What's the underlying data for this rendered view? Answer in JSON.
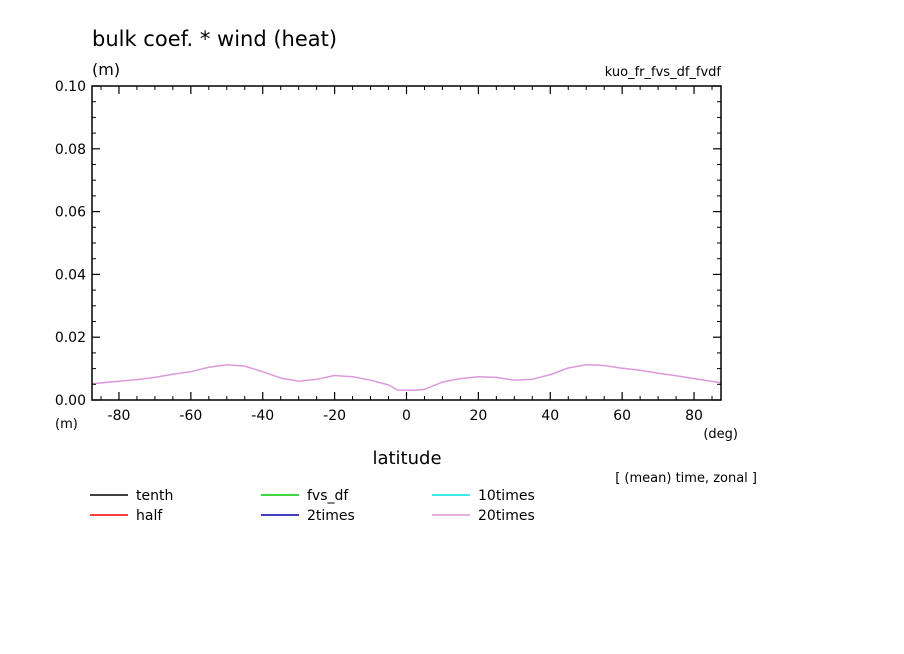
{
  "chart_data": {
    "type": "line",
    "title": "bulk coef. * wind (heat)",
    "experiment": "kuo_fr_fvs_df_fvdf",
    "ylabel": "(m)",
    "ylabel_unit_bottom": "(m)",
    "xlabel": "latitude",
    "xunit": "(deg)",
    "note": "[ (mean) time, zonal ]",
    "xlim": [
      -87.5,
      87.5
    ],
    "ylim": [
      0,
      0.1
    ],
    "xticks": [
      -80,
      -60,
      -40,
      -20,
      0,
      20,
      40,
      60,
      80
    ],
    "xtick_labels": [
      "-80",
      "-60",
      "-40",
      "-20",
      "0",
      "20",
      "40",
      "60",
      "80"
    ],
    "yticks": [
      0,
      0.02,
      0.04,
      0.06,
      0.08,
      0.1
    ],
    "ytick_labels": [
      "0.00",
      "0.02",
      "0.04",
      "0.06",
      "0.08",
      "0.10"
    ],
    "grid": false,
    "legend_placement": "bottom-left",
    "x": [
      -87.5,
      -80,
      -75,
      -70,
      -65,
      -60,
      -55,
      -50,
      -45,
      -40,
      -35,
      -30,
      -25,
      -20,
      -15,
      -10,
      -5,
      -2.5,
      0,
      2.5,
      5,
      10,
      15,
      20,
      25,
      30,
      35,
      40,
      45,
      50,
      55,
      60,
      65,
      70,
      75,
      80,
      87.5
    ],
    "series": [
      {
        "name": "tenth",
        "color": "#000000",
        "values": null
      },
      {
        "name": "half",
        "color": "#ff0000",
        "values": null
      },
      {
        "name": "fvs_df",
        "color": "#00cc00",
        "values": null
      },
      {
        "name": "2times",
        "color": "#0000aa",
        "values": null
      },
      {
        "name": "10times",
        "color": "#00e0e0",
        "values": null
      },
      {
        "name": "20times",
        "color": "#dd99dd",
        "values": [
          0.0052,
          0.006,
          0.0065,
          0.0072,
          0.0082,
          0.009,
          0.0104,
          0.0112,
          0.0108,
          0.009,
          0.007,
          0.006,
          0.0066,
          0.0078,
          0.0074,
          0.0063,
          0.0048,
          0.0032,
          0.0031,
          0.0031,
          0.0034,
          0.0057,
          0.0068,
          0.0074,
          0.0072,
          0.0063,
          0.0066,
          0.0081,
          0.0102,
          0.0112,
          0.011,
          0.0101,
          0.0095,
          0.0085,
          0.0077,
          0.0068,
          0.0055
        ]
      }
    ]
  }
}
